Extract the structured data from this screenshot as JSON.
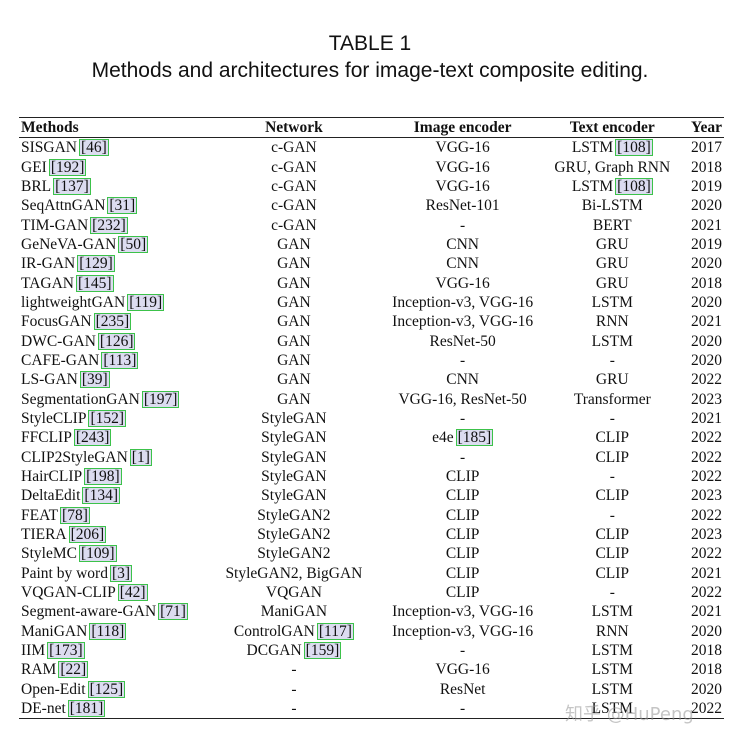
{
  "caption": {
    "label": "TABLE 1",
    "title": "Methods and architectures for image-text composite editing."
  },
  "headers": [
    "Methods",
    "Network",
    "Image encoder",
    "Text encoder",
    "Year"
  ],
  "rows": [
    {
      "method": "SISGAN",
      "ref": "[46]",
      "network": "c-GAN",
      "net_ref": "",
      "image": "VGG-16",
      "img_ref": "",
      "text": "LSTM",
      "txt_ref": "[108]",
      "year": "2017"
    },
    {
      "method": "GEI",
      "ref": "[192]",
      "network": "c-GAN",
      "net_ref": "",
      "image": "VGG-16",
      "img_ref": "",
      "text": "GRU, Graph RNN",
      "txt_ref": "",
      "year": "2018"
    },
    {
      "method": "BRL",
      "ref": "[137]",
      "network": "c-GAN",
      "net_ref": "",
      "image": "VGG-16",
      "img_ref": "",
      "text": "LSTM",
      "txt_ref": "[108]",
      "year": "2019"
    },
    {
      "method": "SeqAttnGAN",
      "ref": "[31]",
      "network": "c-GAN",
      "net_ref": "",
      "image": "ResNet-101",
      "img_ref": "",
      "text": "Bi-LSTM",
      "txt_ref": "",
      "year": "2020"
    },
    {
      "method": "TIM-GAN",
      "ref": "[232]",
      "network": "c-GAN",
      "net_ref": "",
      "image": "-",
      "img_ref": "",
      "text": "BERT",
      "txt_ref": "",
      "year": "2021"
    },
    {
      "method": "GeNeVA-GAN",
      "ref": "[50]",
      "network": "GAN",
      "net_ref": "",
      "image": "CNN",
      "img_ref": "",
      "text": "GRU",
      "txt_ref": "",
      "year": "2019"
    },
    {
      "method": "IR-GAN",
      "ref": "[129]",
      "network": "GAN",
      "net_ref": "",
      "image": "CNN",
      "img_ref": "",
      "text": "GRU",
      "txt_ref": "",
      "year": "2020"
    },
    {
      "method": "TAGAN",
      "ref": "[145]",
      "network": "GAN",
      "net_ref": "",
      "image": "VGG-16",
      "img_ref": "",
      "text": "GRU",
      "txt_ref": "",
      "year": "2018"
    },
    {
      "method": "lightweightGAN",
      "ref": "[119]",
      "network": "GAN",
      "net_ref": "",
      "image": "Inception-v3, VGG-16",
      "img_ref": "",
      "text": "LSTM",
      "txt_ref": "",
      "year": "2020"
    },
    {
      "method": "FocusGAN",
      "ref": "[235]",
      "network": "GAN",
      "net_ref": "",
      "image": "Inception-v3, VGG-16",
      "img_ref": "",
      "text": "RNN",
      "txt_ref": "",
      "year": "2021"
    },
    {
      "method": "DWC-GAN",
      "ref": "[126]",
      "network": "GAN",
      "net_ref": "",
      "image": "ResNet-50",
      "img_ref": "",
      "text": "LSTM",
      "txt_ref": "",
      "year": "2020"
    },
    {
      "method": "CAFE-GAN",
      "ref": "[113]",
      "network": "GAN",
      "net_ref": "",
      "image": "-",
      "img_ref": "",
      "text": "-",
      "txt_ref": "",
      "year": "2020"
    },
    {
      "method": "LS-GAN",
      "ref": "[39]",
      "network": "GAN",
      "net_ref": "",
      "image": "CNN",
      "img_ref": "",
      "text": "GRU",
      "txt_ref": "",
      "year": "2022"
    },
    {
      "method": "SegmentationGAN",
      "ref": "[197]",
      "network": "GAN",
      "net_ref": "",
      "image": "VGG-16, ResNet-50",
      "img_ref": "",
      "text": "Transformer",
      "txt_ref": "",
      "year": "2023"
    },
    {
      "method": "StyleCLIP",
      "ref": "[152]",
      "network": "StyleGAN",
      "net_ref": "",
      "image": "-",
      "img_ref": "",
      "text": "-",
      "txt_ref": "",
      "year": "2021"
    },
    {
      "method": "FFCLIP",
      "ref": "[243]",
      "network": "StyleGAN",
      "net_ref": "",
      "image": "e4e",
      "img_ref": "[185]",
      "text": "CLIP",
      "txt_ref": "",
      "year": "2022"
    },
    {
      "method": "CLIP2StyleGAN",
      "ref": "[1]",
      "network": "StyleGAN",
      "net_ref": "",
      "image": "-",
      "img_ref": "",
      "text": "CLIP",
      "txt_ref": "",
      "year": "2022"
    },
    {
      "method": "HairCLIP",
      "ref": "[198]",
      "network": "StyleGAN",
      "net_ref": "",
      "image": "CLIP",
      "img_ref": "",
      "text": "-",
      "txt_ref": "",
      "year": "2022"
    },
    {
      "method": "DeltaEdit",
      "ref": "[134]",
      "network": "StyleGAN",
      "net_ref": "",
      "image": "CLIP",
      "img_ref": "",
      "text": "CLIP",
      "txt_ref": "",
      "year": "2023"
    },
    {
      "method": "FEAT",
      "ref": "[78]",
      "network": "StyleGAN2",
      "net_ref": "",
      "image": "CLIP",
      "img_ref": "",
      "text": "-",
      "txt_ref": "",
      "year": "2022"
    },
    {
      "method": "TIERA",
      "ref": "[206]",
      "network": "StyleGAN2",
      "net_ref": "",
      "image": "CLIP",
      "img_ref": "",
      "text": "CLIP",
      "txt_ref": "",
      "year": "2023"
    },
    {
      "method": "StyleMC",
      "ref": "[109]",
      "network": "StyleGAN2",
      "net_ref": "",
      "image": "CLIP",
      "img_ref": "",
      "text": "CLIP",
      "txt_ref": "",
      "year": "2022"
    },
    {
      "method": "Paint by word",
      "ref": "[3]",
      "network": "StyleGAN2, BigGAN",
      "net_ref": "",
      "image": "CLIP",
      "img_ref": "",
      "text": "CLIP",
      "txt_ref": "",
      "year": "2021"
    },
    {
      "method": "VQGAN-CLIP",
      "ref": "[42]",
      "network": "VQGAN",
      "net_ref": "",
      "image": "CLIP",
      "img_ref": "",
      "text": "-",
      "txt_ref": "",
      "year": "2022"
    },
    {
      "method": "Segment-aware-GAN",
      "ref": "[71]",
      "network": "ManiGAN",
      "net_ref": "",
      "image": "Inception-v3, VGG-16",
      "img_ref": "",
      "text": "LSTM",
      "txt_ref": "",
      "year": "2021"
    },
    {
      "method": "ManiGAN",
      "ref": "[118]",
      "network": "ControlGAN",
      "net_ref": "[117]",
      "image": "Inception-v3, VGG-16",
      "img_ref": "",
      "text": "RNN",
      "txt_ref": "",
      "year": "2020"
    },
    {
      "method": "IIM",
      "ref": "[173]",
      "network": "DCGAN",
      "net_ref": "[159]",
      "image": "-",
      "img_ref": "",
      "text": "LSTM",
      "txt_ref": "",
      "year": "2018"
    },
    {
      "method": "RAM",
      "ref": "[22]",
      "network": "-",
      "net_ref": "",
      "image": "VGG-16",
      "img_ref": "",
      "text": "LSTM",
      "txt_ref": "",
      "year": "2018"
    },
    {
      "method": "Open-Edit",
      "ref": "[125]",
      "network": "-",
      "net_ref": "",
      "image": "ResNet",
      "img_ref": "",
      "text": "LSTM",
      "txt_ref": "",
      "year": "2020"
    },
    {
      "method": "DE-net",
      "ref": "[181]",
      "network": "-",
      "net_ref": "",
      "image": "-",
      "img_ref": "",
      "text": "LSTM",
      "txt_ref": "",
      "year": "2022"
    }
  ],
  "watermark": "知乎 @HuPeng"
}
